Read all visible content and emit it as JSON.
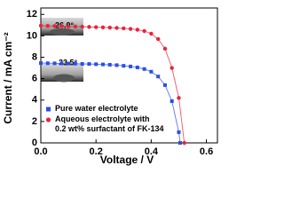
{
  "chart_data": {
    "type": "line",
    "xlabel": "Voltage / V",
    "ylabel": "Current / mA cm⁻²",
    "xlim": [
      0,
      0.64
    ],
    "ylim": [
      0,
      12.6
    ],
    "xticks": [
      {
        "value": 0,
        "label": "0.0"
      },
      0.2,
      0.4,
      0.6
    ],
    "yticks": [
      0,
      2,
      4,
      6,
      8,
      10,
      12
    ],
    "legend": "lower left",
    "series": [
      {
        "name": "Pure water electrolyte",
        "color": "#2b4ee8",
        "marker": "square",
        "x": [
          0,
          0.025,
          0.05,
          0.075,
          0.1,
          0.125,
          0.15,
          0.175,
          0.2,
          0.225,
          0.25,
          0.275,
          0.3,
          0.325,
          0.35,
          0.375,
          0.4,
          0.425,
          0.45,
          0.475,
          0.5,
          0.505
        ],
        "values": [
          7.45,
          7.44,
          7.43,
          7.42,
          7.41,
          7.4,
          7.38,
          7.37,
          7.35,
          7.33,
          7.3,
          7.26,
          7.2,
          7.14,
          7.05,
          6.9,
          6.65,
          6.2,
          5.4,
          3.9,
          1.0,
          0
        ]
      },
      {
        "name": "Aqueous electrolyte with\n0.2 wt% surfactant of FK-134",
        "color": "#e8243c",
        "marker": "circle",
        "x": [
          0,
          0.025,
          0.05,
          0.075,
          0.1,
          0.125,
          0.15,
          0.175,
          0.2,
          0.225,
          0.25,
          0.275,
          0.3,
          0.325,
          0.35,
          0.375,
          0.4,
          0.425,
          0.45,
          0.475,
          0.5,
          0.52
        ],
        "values": [
          10.95,
          10.93,
          10.92,
          10.9,
          10.88,
          10.87,
          10.85,
          10.83,
          10.81,
          10.79,
          10.77,
          10.74,
          10.7,
          10.65,
          10.57,
          10.45,
          10.2,
          9.7,
          8.8,
          7.0,
          4.2,
          0
        ]
      }
    ],
    "annotations": [
      {
        "text": "26.0°",
        "color": "#e8243c"
      },
      {
        "text": "33.5°",
        "color": "#2b4ee8"
      }
    ]
  }
}
